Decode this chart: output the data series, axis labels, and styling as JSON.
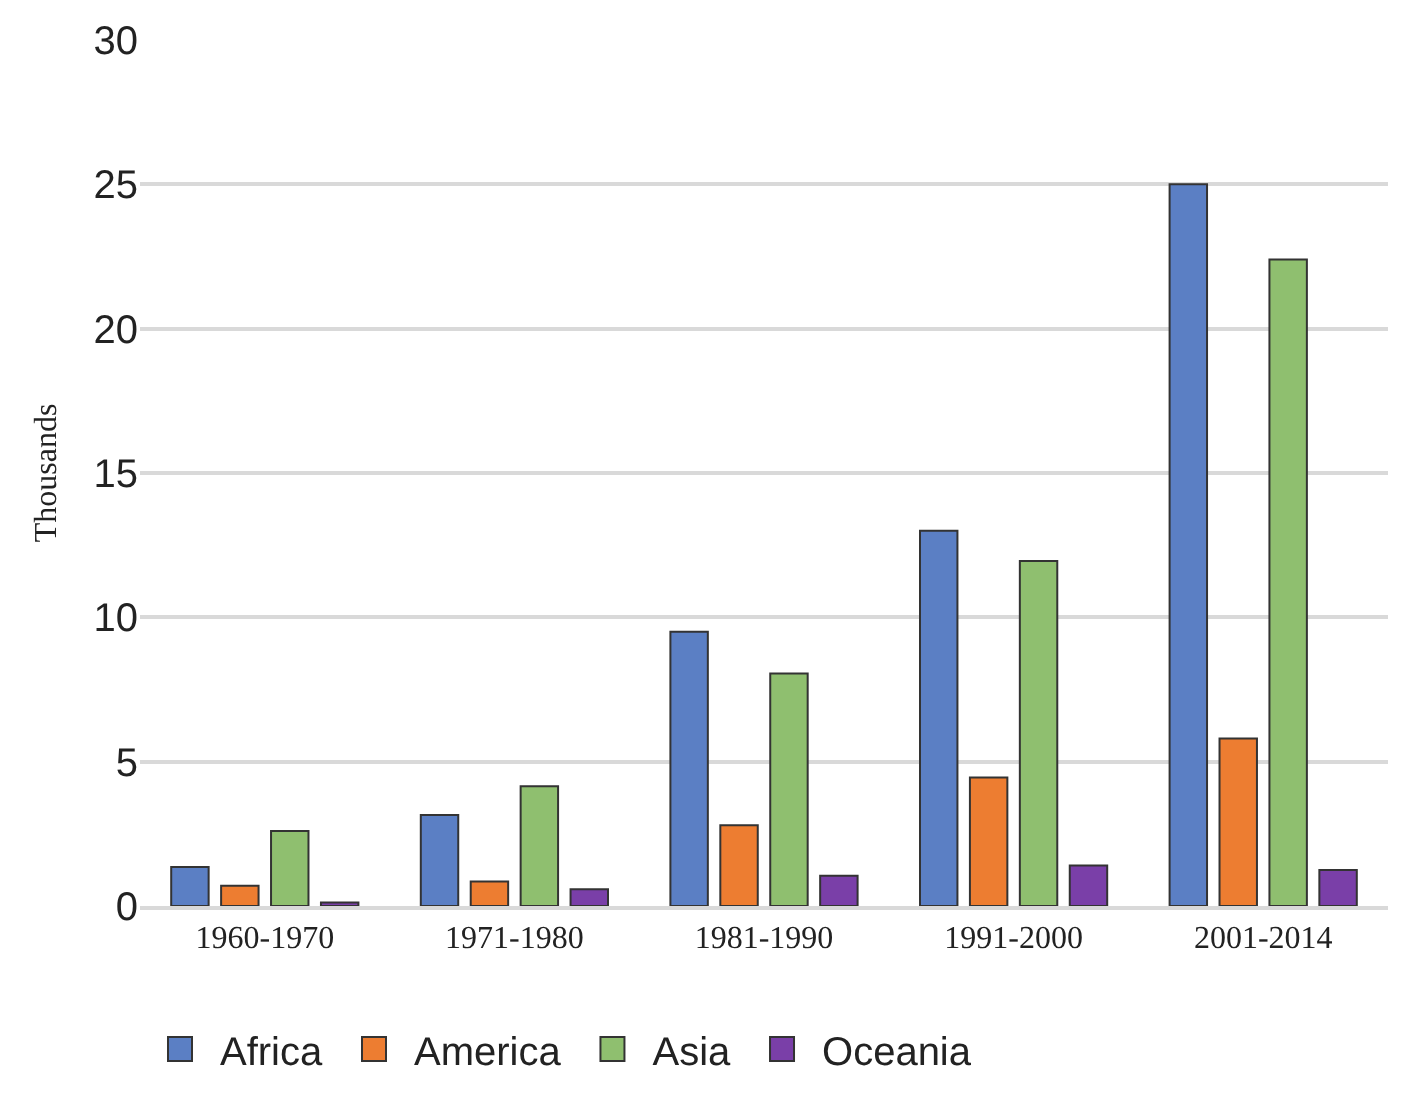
{
  "chart_data": {
    "type": "bar",
    "ylabel": "Thousands",
    "categories": [
      "1960-1970",
      "1971-1980",
      "1981-1990",
      "1991-2000",
      "2001-2014"
    ],
    "series": [
      {
        "name": "Africa",
        "color": "#5b7fc4",
        "values": [
          1.35,
          3.15,
          9.5,
          13,
          25
        ]
      },
      {
        "name": "America",
        "color": "#ed7d31",
        "values": [
          0.7,
          0.85,
          2.8,
          4.45,
          5.8
        ]
      },
      {
        "name": "Asia",
        "color": "#8fbf6f",
        "values": [
          2.6,
          4.15,
          8.05,
          11.95,
          22.4
        ]
      },
      {
        "name": "Oceania",
        "color": "#7a3fa8",
        "values": [
          0.12,
          0.58,
          1.05,
          1.4,
          1.25
        ]
      }
    ],
    "ylim": [
      0,
      30
    ],
    "yticks": [
      0,
      5,
      10,
      15,
      20,
      25,
      30
    ],
    "grid": "y",
    "legend": "bottom"
  }
}
